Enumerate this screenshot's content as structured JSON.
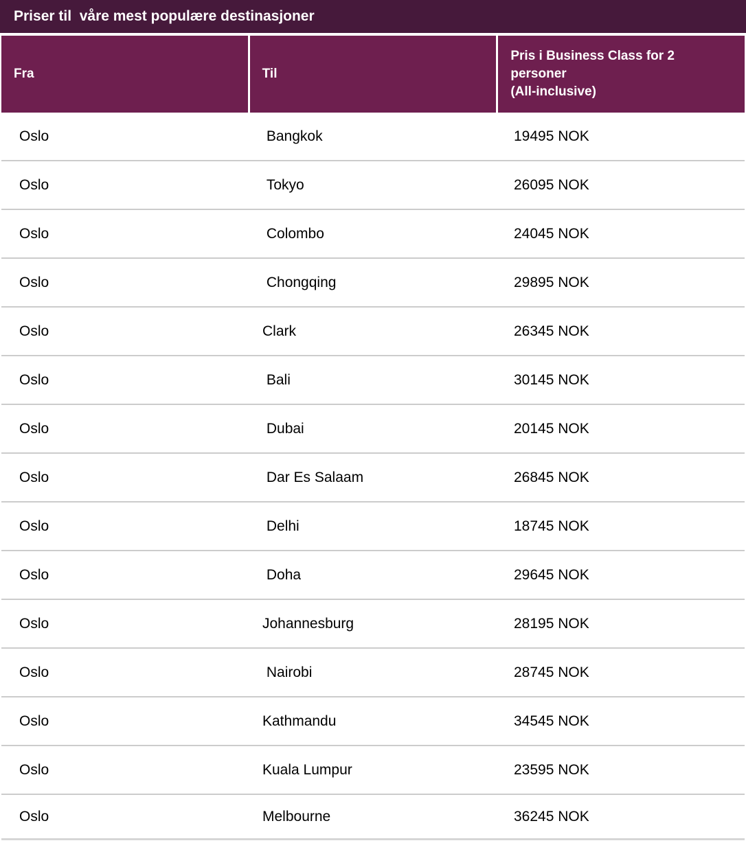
{
  "title": "Priser til  våre mest populære destinasjoner",
  "columns": [
    {
      "label": "Fra"
    },
    {
      "label": "Til"
    },
    {
      "label": "Pris i Business Class for 2\npersoner\n(All-inclusive)"
    }
  ],
  "rows": [
    {
      "from": "Oslo",
      "to": " Bangkok",
      "price": "19495 NOK"
    },
    {
      "from": "Oslo",
      "to": " Tokyo",
      "price": "26095 NOK"
    },
    {
      "from": "Oslo",
      "to": " Colombo",
      "price": "24045 NOK"
    },
    {
      "from": "Oslo",
      "to": " Chongqing",
      "price": "29895 NOK"
    },
    {
      "from": "Oslo",
      "to": "Clark",
      "price": "26345 NOK"
    },
    {
      "from": "Oslo",
      "to": " Bali",
      "price": "30145 NOK"
    },
    {
      "from": "Oslo",
      "to": " Dubai",
      "price": "20145 NOK"
    },
    {
      "from": "Oslo",
      "to": " Dar Es Salaam",
      "price": "26845 NOK"
    },
    {
      "from": "Oslo",
      "to": " Delhi",
      "price": "18745 NOK"
    },
    {
      "from": "Oslo",
      "to": " Doha",
      "price": "29645 NOK"
    },
    {
      "from": "Oslo",
      "to": "Johannesburg",
      "price": "28195 NOK"
    },
    {
      "from": "Oslo",
      "to": " Nairobi",
      "price": "28745 NOK"
    },
    {
      "from": "Oslo",
      "to": "Kathmandu",
      "price": "34545 NOK"
    },
    {
      "from": "Oslo",
      "to": "Kuala Lumpur",
      "price": "23595 NOK"
    },
    {
      "from": "Oslo",
      "to": "Melbourne",
      "price": "36245 NOK"
    }
  ],
  "colors": {
    "title_bar_bg": "#46193B",
    "header_bg": "#6E1F4F",
    "header_text": "#FFFFFF",
    "body_text": "#000000",
    "row_divider": "#CCCCCC",
    "bottom_divider": "#D6D6D6"
  }
}
